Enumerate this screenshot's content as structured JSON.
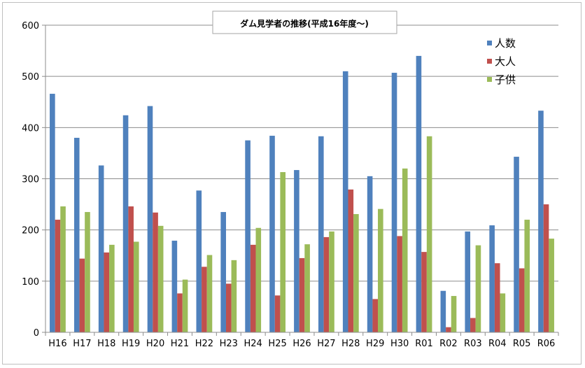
{
  "chart_data": {
    "type": "bar",
    "title": "ダム見学者の推移(平成16年度～)",
    "xlabel": "",
    "ylabel": "",
    "ylim": [
      0,
      600
    ],
    "yticks": [
      0,
      100,
      200,
      300,
      400,
      500,
      600
    ],
    "grid": true,
    "legend_position": "top-right",
    "categories": [
      "H16",
      "H17",
      "H18",
      "H19",
      "H20",
      "H21",
      "H22",
      "H23",
      "H24",
      "H25",
      "H26",
      "H27",
      "H28",
      "H29",
      "H30",
      "R01",
      "R02",
      "R03",
      "R04",
      "R05",
      "R06"
    ],
    "series": [
      {
        "name": "人数",
        "color": "#4f81bd",
        "values": [
          466,
          380,
          326,
          424,
          442,
          179,
          277,
          235,
          375,
          384,
          317,
          383,
          510,
          305,
          507,
          540,
          81,
          197,
          209,
          343,
          433
        ]
      },
      {
        "name": "大人",
        "color": "#c0504d",
        "values": [
          220,
          144,
          156,
          246,
          234,
          76,
          128,
          95,
          171,
          72,
          145,
          186,
          279,
          65,
          188,
          157,
          10,
          28,
          135,
          125,
          250
        ]
      },
      {
        "name": "子供",
        "color": "#9bbb59",
        "values": [
          246,
          235,
          171,
          177,
          208,
          103,
          151,
          141,
          204,
          313,
          172,
          197,
          231,
          241,
          320,
          383,
          71,
          170,
          76,
          220,
          183
        ]
      }
    ]
  }
}
